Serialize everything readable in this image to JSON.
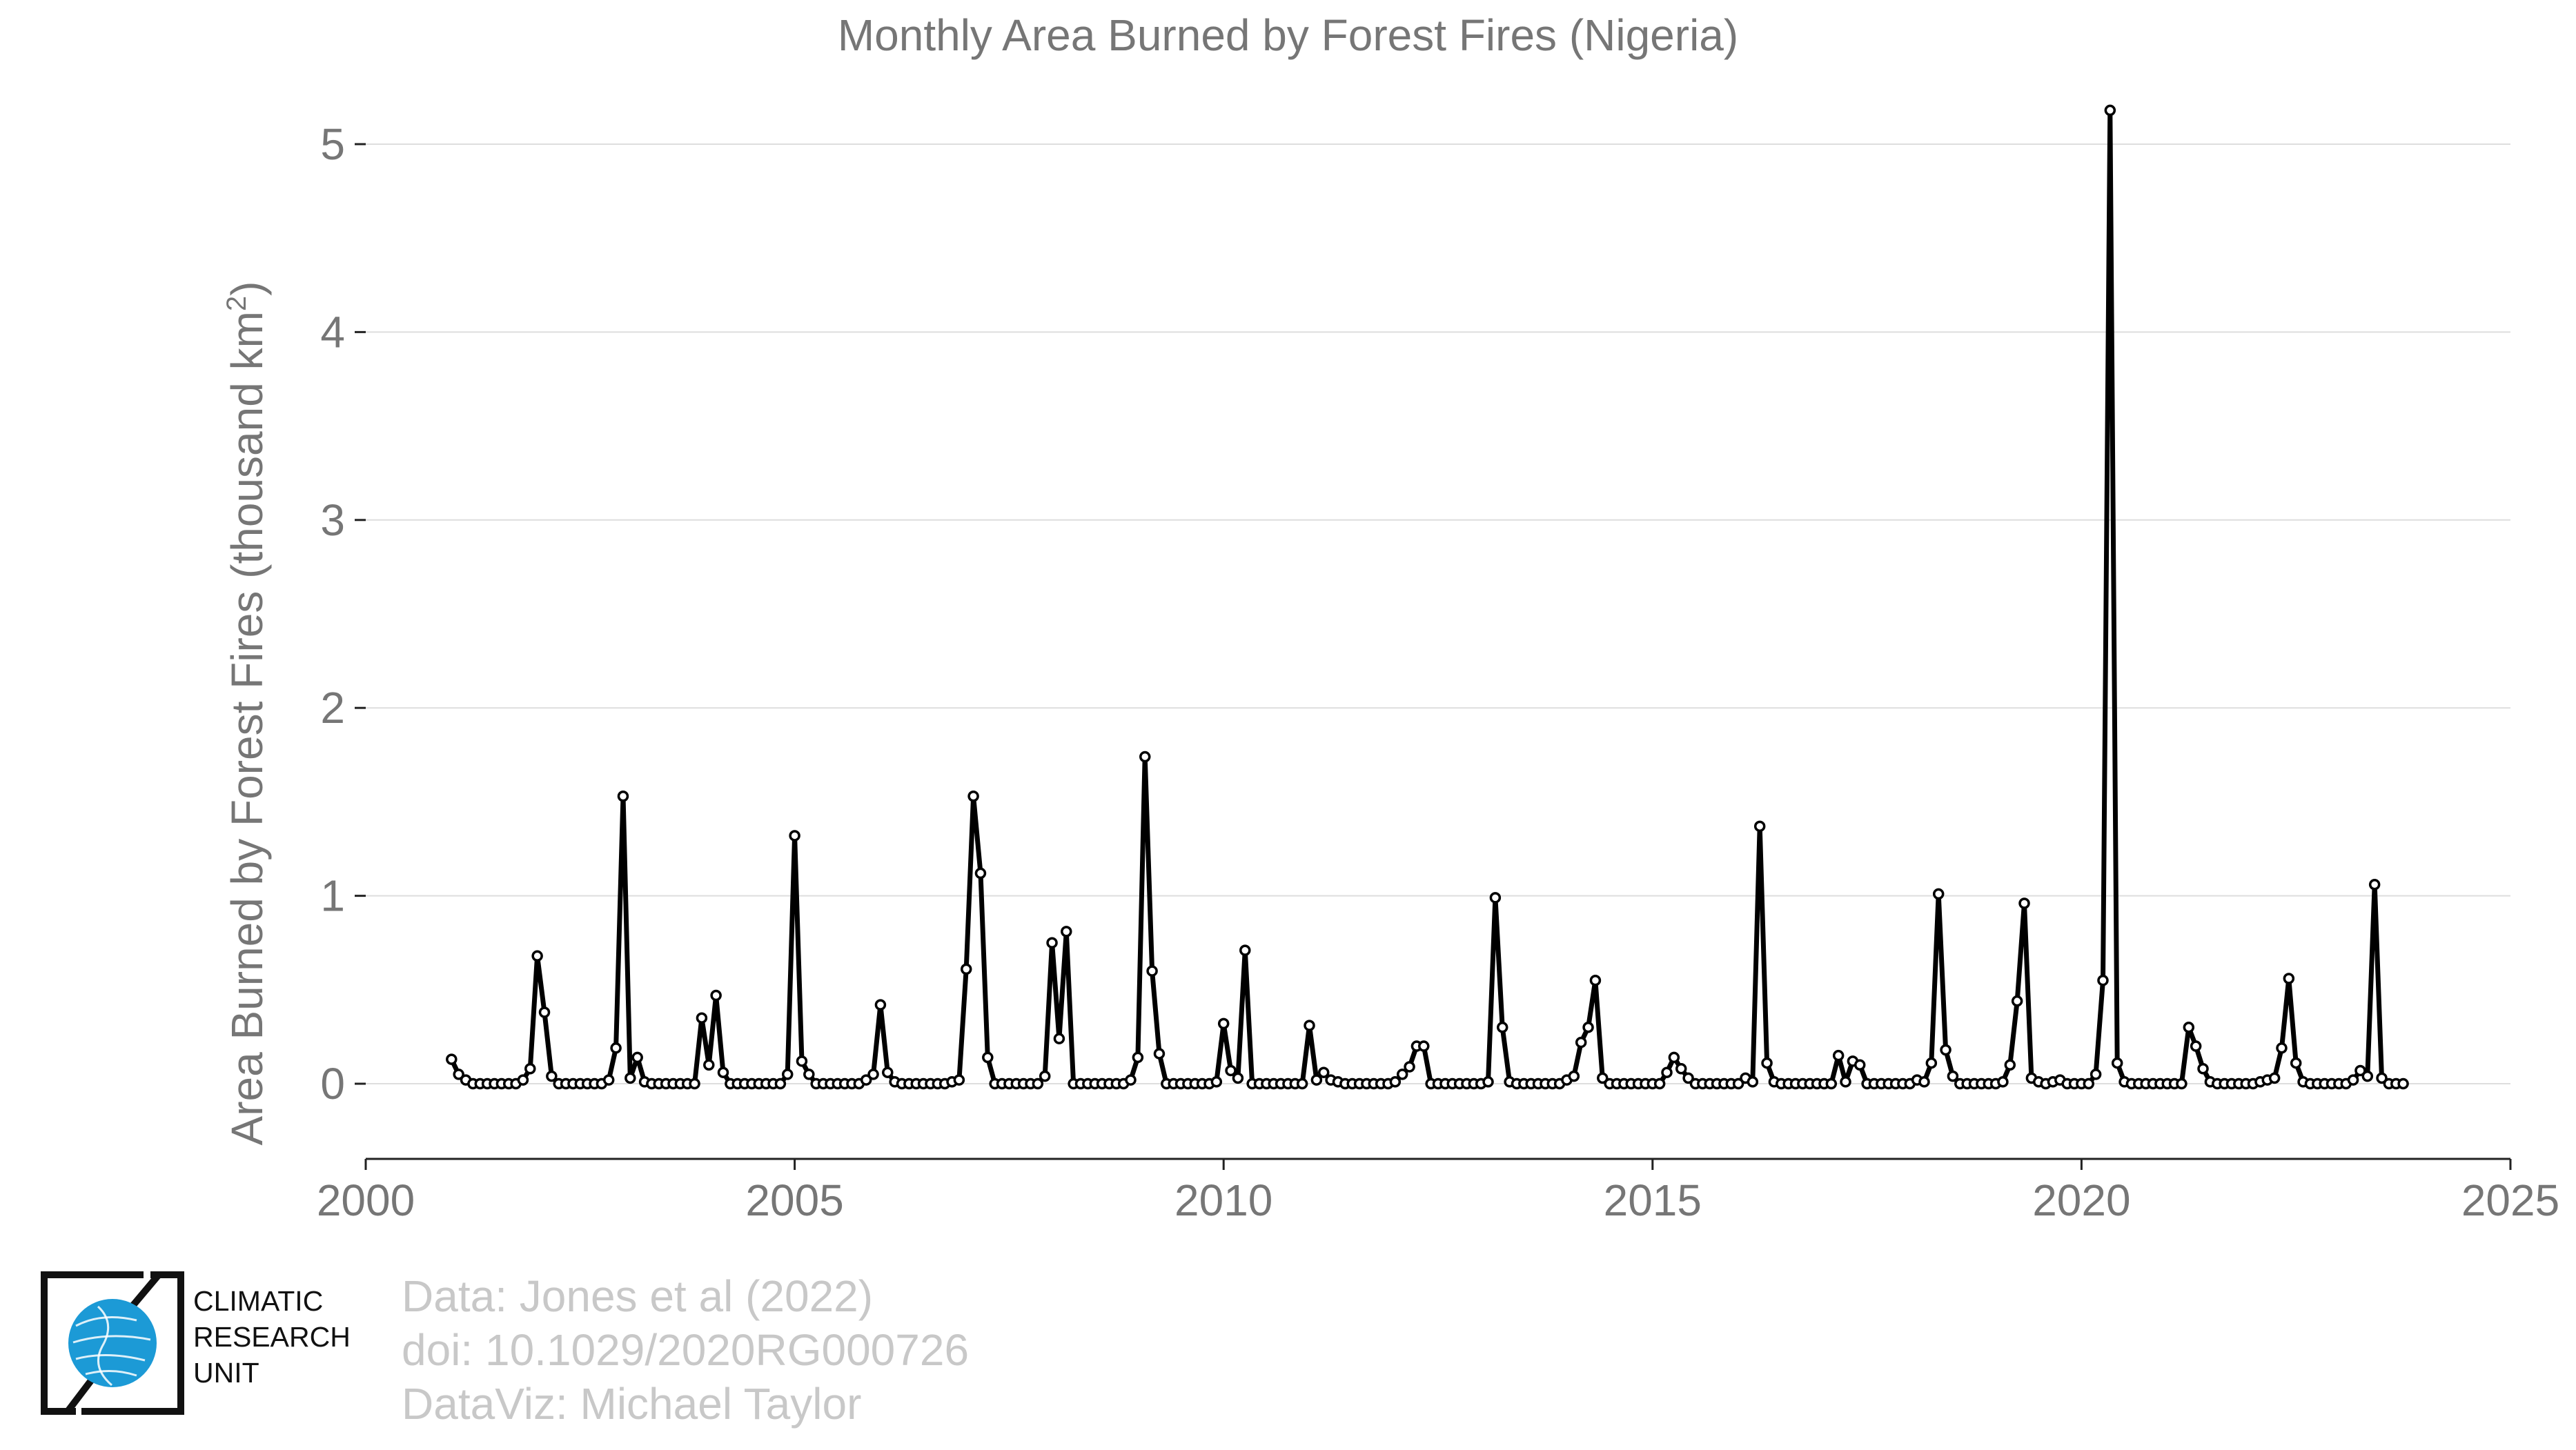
{
  "chart_data": {
    "type": "line",
    "title": "Monthly Area Burned by Forest Fires (Nigeria)",
    "ylabel": "Area Burned by Forest Fires (thousand km",
    "ylabel_sup": "2",
    "ylabel_close": ")",
    "xlim": [
      2000,
      2025
    ],
    "ylim": [
      -0.4,
      5.4
    ],
    "xticks": [
      2000,
      2005,
      2010,
      2015,
      2020,
      2025
    ],
    "yticks": [
      0,
      1,
      2,
      3,
      4,
      5
    ],
    "grid": true,
    "line_color": "#000000",
    "marker_fill": "#ffffff",
    "start_year": 2001,
    "series": [
      {
        "values": [
          0.13,
          0.05,
          0.02,
          0,
          0,
          0,
          0,
          0,
          0,
          0,
          0.02,
          0.08,
          0.68,
          0.38,
          0.04,
          0,
          0,
          0,
          0,
          0,
          0,
          0,
          0.02,
          0.19,
          1.53,
          0.03,
          0.14,
          0.01,
          0,
          0,
          0,
          0,
          0,
          0,
          0,
          0.35,
          0.1,
          0.47,
          0.06,
          0,
          0,
          0,
          0,
          0,
          0,
          0,
          0,
          0.05,
          1.32,
          0.12,
          0.05,
          0,
          0,
          0,
          0,
          0,
          0,
          0,
          0.02,
          0.05,
          0.42,
          0.06,
          0.01,
          0,
          0,
          0,
          0,
          0,
          0,
          0,
          0.01,
          0.02,
          0.61,
          1.53,
          1.12,
          0.14,
          0,
          0,
          0,
          0,
          0,
          0,
          0,
          0.04,
          0.75,
          0.24,
          0.81,
          0,
          0,
          0,
          0,
          0,
          0,
          0,
          0,
          0.02,
          0.14,
          1.74,
          0.6,
          0.16,
          0,
          0,
          0,
          0,
          0,
          0,
          0,
          0.01,
          0.32,
          0.07,
          0.03,
          0.71,
          0,
          0,
          0,
          0,
          0,
          0,
          0,
          0,
          0.31,
          0.02,
          0.06,
          0.02,
          0.01,
          0,
          0,
          0,
          0,
          0,
          0,
          0,
          0.01,
          0.05,
          0.09,
          0.2,
          0.2,
          0,
          0,
          0,
          0,
          0,
          0,
          0,
          0,
          0.01,
          0.99,
          0.3,
          0.01,
          0,
          0,
          0,
          0,
          0,
          0,
          0,
          0.02,
          0.04,
          0.22,
          0.3,
          0.55,
          0.03,
          0,
          0,
          0,
          0,
          0,
          0,
          0,
          0,
          0.06,
          0.14,
          0.08,
          0.03,
          0,
          0,
          0,
          0,
          0,
          0,
          0,
          0.03,
          0.01,
          1.37,
          0.11,
          0.01,
          0,
          0,
          0,
          0,
          0,
          0,
          0,
          0,
          0.15,
          0.01,
          0.12,
          0.1,
          0,
          0,
          0,
          0,
          0,
          0,
          0,
          0.02,
          0.01,
          0.11,
          1.01,
          0.18,
          0.04,
          0,
          0,
          0,
          0,
          0,
          0,
          0.01,
          0.1,
          0.44,
          0.96,
          0.03,
          0.01,
          0,
          0.01,
          0.02,
          0,
          0,
          0,
          0,
          0.05,
          0.55,
          5.18,
          0.11,
          0.01,
          0,
          0,
          0,
          0,
          0,
          0,
          0,
          0,
          0.3,
          0.2,
          0.08,
          0.01,
          0,
          0,
          0,
          0,
          0,
          0,
          0.01,
          0.02,
          0.03,
          0.19,
          0.56,
          0.11,
          0.01,
          0,
          0,
          0,
          0,
          0,
          0,
          0.02,
          0.07,
          0.04,
          1.06,
          0.03,
          0,
          0,
          0
        ]
      }
    ]
  },
  "credits": {
    "line1": "Data: Jones et al (2022)",
    "line2": "doi: 10.1029/2020RG000726",
    "line3": "DataViz: Michael Taylor"
  },
  "logo": {
    "line1": "CLIMATIC",
    "line2": "RESEARCH",
    "line3": "UNIT",
    "globe_color": "#1c9ad6"
  }
}
